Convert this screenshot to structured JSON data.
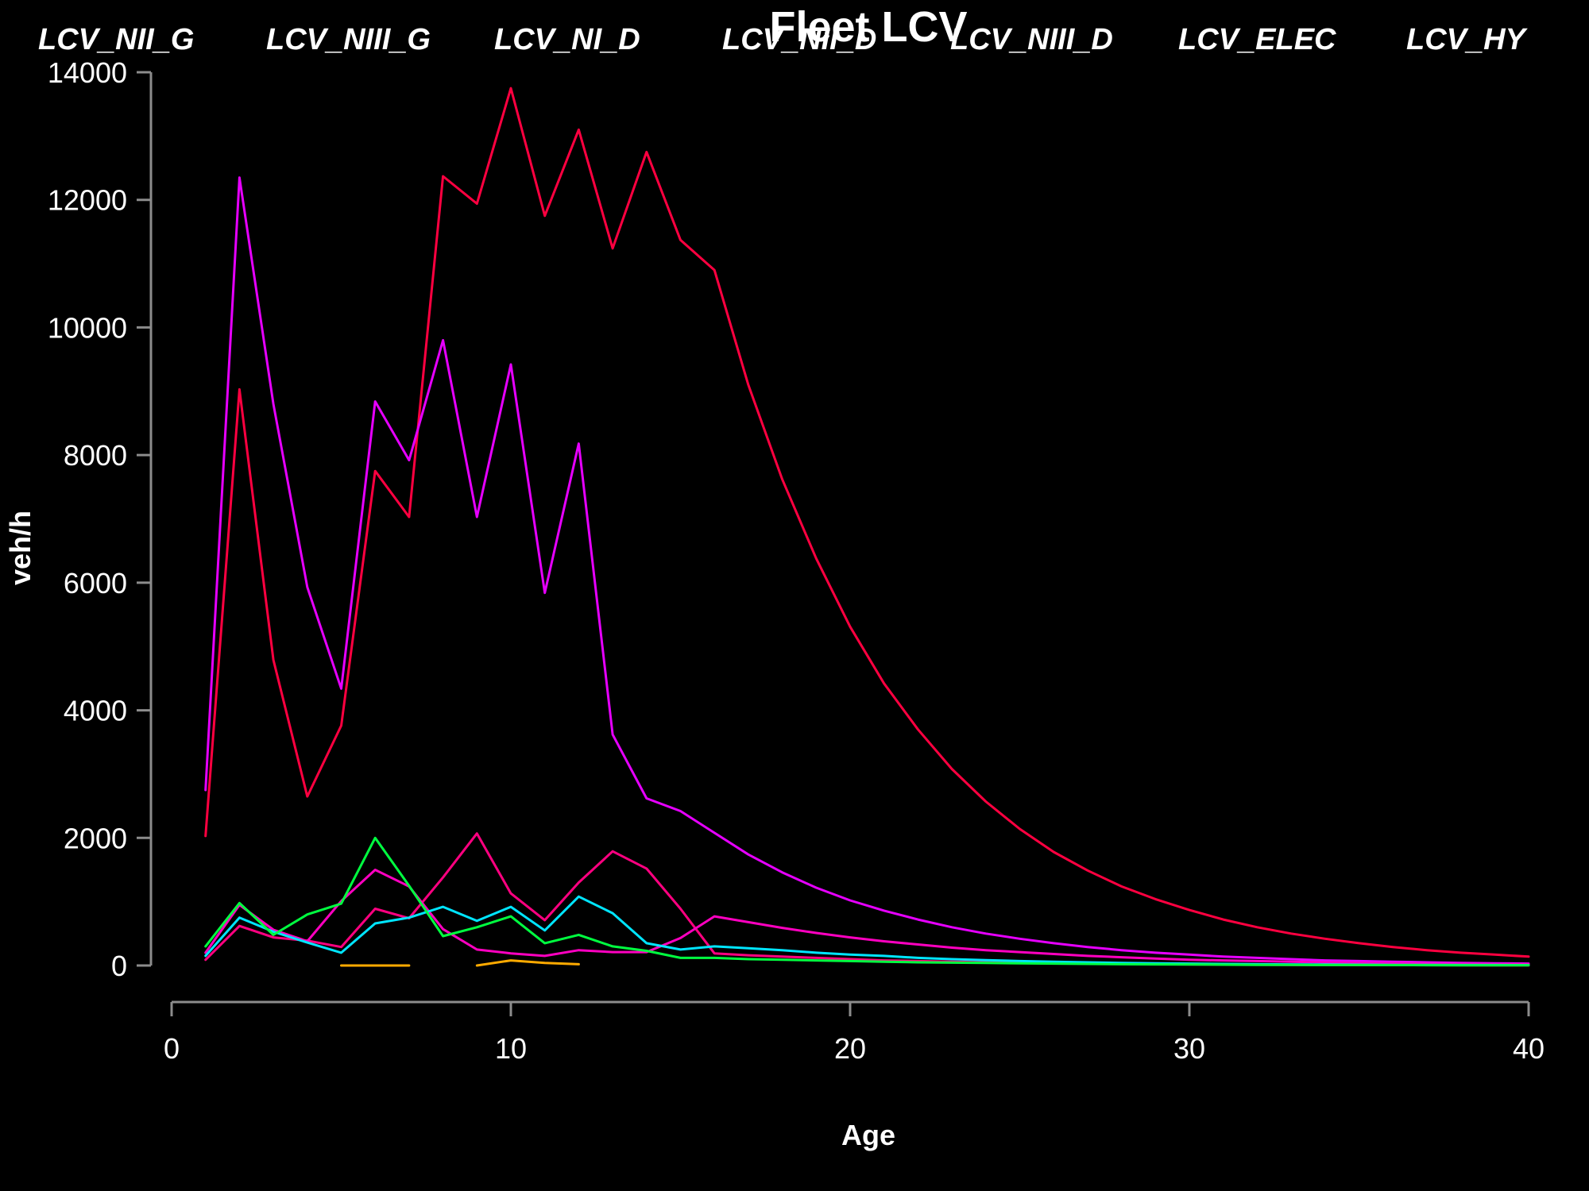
{
  "chart_data": {
    "type": "line",
    "title": "Fleet LCV",
    "xlabel": "Age",
    "ylabel": "veh/h",
    "xlim": [
      0,
      40
    ],
    "ylim": [
      0,
      14000
    ],
    "xticks": [
      "0",
      "10",
      "20",
      "30",
      "40"
    ],
    "yticks": [
      "0",
      "2000",
      "4000",
      "6000",
      "8000",
      "10000",
      "12000",
      "14000"
    ],
    "legend_position": "top",
    "series": [
      {
        "name": "LCV_NII_G",
        "color": "#ff0040",
        "x": [
          1,
          2,
          3,
          4,
          5,
          6,
          7,
          8,
          9,
          10,
          11,
          12,
          13,
          14,
          15,
          16,
          17,
          18,
          19,
          20,
          21,
          22,
          23,
          24,
          25,
          26,
          27,
          28,
          29,
          30,
          31,
          32,
          33,
          34,
          35,
          36,
          37,
          38,
          39,
          40
        ],
        "y": [
          2030,
          9030,
          4790,
          2650,
          3760,
          7750,
          7030,
          12370,
          11940,
          13750,
          11750,
          13100,
          11240,
          12750,
          11370,
          10900,
          9100,
          7620,
          6380,
          5310,
          4420,
          3700,
          3080,
          2570,
          2140,
          1780,
          1490,
          1240,
          1040,
          870,
          720,
          600,
          500,
          420,
          350,
          290,
          240,
          200,
          170,
          140
        ]
      },
      {
        "name": "LCV_NIII_G",
        "color": "#e600ff",
        "x": [
          1,
          2,
          3,
          4,
          5,
          6,
          7,
          8,
          9,
          10,
          11,
          12,
          13,
          14,
          15,
          16,
          17,
          18,
          19,
          20,
          21,
          22,
          23,
          24,
          25,
          26,
          27,
          28,
          29,
          30,
          31,
          32,
          33,
          34,
          35,
          36,
          37,
          38,
          39,
          40
        ],
        "y": [
          2750,
          12350,
          8800,
          5930,
          4340,
          8840,
          7920,
          9800,
          7030,
          9420,
          5840,
          8180,
          3620,
          2620,
          2420,
          2080,
          1740,
          1460,
          1220,
          1020,
          860,
          720,
          600,
          500,
          420,
          350,
          290,
          240,
          200,
          170,
          140,
          120,
          100,
          80,
          70,
          60,
          50,
          40,
          35,
          30
        ]
      },
      {
        "name": "LCV_NI_D",
        "color": "#ff0080",
        "x": [
          1,
          2,
          3,
          4,
          5,
          6,
          7,
          8,
          9,
          10,
          11,
          12,
          13,
          14,
          15,
          16,
          17,
          18,
          19,
          20,
          21,
          22,
          23,
          24,
          25,
          26,
          27,
          28,
          29,
          30,
          31,
          32,
          33,
          34,
          35,
          36,
          37,
          38,
          39,
          40
        ],
        "y": [
          90,
          620,
          440,
          390,
          290,
          890,
          740,
          1380,
          2070,
          1130,
          710,
          1300,
          1790,
          1520,
          890,
          190,
          160,
          140,
          120,
          100,
          80,
          70,
          60,
          50,
          40,
          35,
          30,
          25,
          20,
          18,
          15,
          12,
          10,
          9,
          8,
          7,
          6,
          5,
          4,
          4
        ]
      },
      {
        "name": "LCV_NII_D",
        "color": "#ff00c0",
        "x": [
          1,
          2,
          3,
          4,
          5,
          6,
          7,
          8,
          9,
          10,
          11,
          12,
          13,
          14,
          15,
          16,
          17,
          18,
          19,
          20,
          21,
          22,
          23,
          24,
          25,
          26,
          27,
          28,
          29,
          30,
          31,
          32,
          33,
          34,
          35,
          36,
          37,
          38,
          39,
          40
        ],
        "y": [
          200,
          950,
          560,
          380,
          1010,
          1500,
          1240,
          570,
          250,
          190,
          150,
          240,
          210,
          210,
          430,
          770,
          680,
          590,
          510,
          440,
          380,
          330,
          280,
          240,
          210,
          180,
          150,
          130,
          110,
          90,
          80,
          70,
          60,
          50,
          40,
          35,
          30,
          25,
          20,
          18
        ]
      },
      {
        "name": "LCV_NIII_D",
        "color": "#00e5ff",
        "x": [
          1,
          2,
          3,
          4,
          5,
          6,
          7,
          8,
          9,
          10,
          11,
          12,
          13,
          14,
          15,
          16,
          17,
          18,
          19,
          20,
          21,
          22,
          23,
          24,
          25,
          26,
          27,
          28,
          29,
          30,
          31,
          32,
          33,
          34,
          35,
          36,
          37,
          38,
          39,
          40
        ],
        "y": [
          150,
          750,
          530,
          360,
          200,
          660,
          750,
          920,
          700,
          920,
          550,
          1080,
          820,
          350,
          250,
          300,
          270,
          240,
          200,
          170,
          150,
          120,
          100,
          85,
          70,
          60,
          50,
          40,
          35,
          30,
          25,
          20,
          18,
          15,
          12,
          10,
          9,
          8,
          7,
          6
        ]
      },
      {
        "name": "LCV_ELEC",
        "color": "#00ff40",
        "x": [
          1,
          2,
          3,
          4,
          5,
          6,
          7,
          8,
          9,
          10,
          11,
          12,
          13,
          14,
          15,
          16,
          17,
          18,
          19,
          20,
          21,
          22,
          23,
          24,
          25,
          26,
          27,
          28,
          29,
          30,
          31,
          32,
          33,
          34,
          35,
          36,
          37,
          38,
          39,
          40
        ],
        "y": [
          300,
          980,
          480,
          800,
          970,
          2000,
          1250,
          460,
          600,
          770,
          350,
          480,
          300,
          230,
          120,
          120,
          100,
          90,
          80,
          70,
          60,
          50,
          45,
          40,
          35,
          30,
          25,
          20,
          18,
          15,
          12,
          10,
          9,
          8,
          7,
          6,
          5,
          4,
          4,
          3
        ]
      },
      {
        "name": "LCV_HY",
        "color": "#ffaa00",
        "segments": [
          {
            "x": [
              5,
              6,
              7
            ],
            "y": [
              0,
              0,
              0
            ]
          },
          {
            "x": [
              9,
              10,
              11,
              12
            ],
            "y": [
              0,
              80,
              40,
              20
            ]
          }
        ]
      }
    ]
  }
}
